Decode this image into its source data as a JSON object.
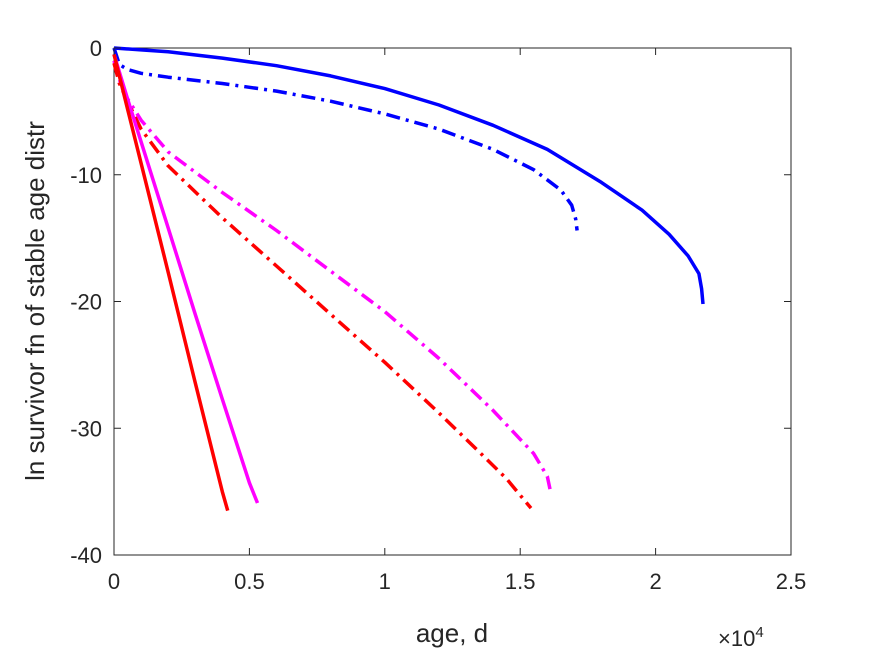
{
  "chart_data": {
    "type": "line",
    "title": "",
    "xlabel": "age, d",
    "ylabel": "ln survivor fn of stable age distr",
    "x_exponent_label": {
      "base": "×10",
      "power": "4"
    },
    "xlim": [
      0,
      25000
    ],
    "ylim": [
      -40,
      0
    ],
    "x_ticks": [
      0,
      5000,
      10000,
      15000,
      20000,
      25000
    ],
    "x_tick_labels": [
      "0",
      "0.5",
      "1",
      "1.5",
      "2",
      "2.5"
    ],
    "y_ticks": [
      0,
      -10,
      -20,
      -30,
      -40
    ],
    "y_tick_labels": [
      "0",
      "-10",
      "-20",
      "-30",
      "-40"
    ],
    "grid": false,
    "series": [
      {
        "color": "#0000ff",
        "style": "solid",
        "x": [
          0,
          1000,
          2000,
          4000,
          6000,
          8000,
          10000,
          12000,
          14000,
          16000,
          18000,
          19500,
          20500,
          21200,
          21600,
          21700,
          21750
        ],
        "y": [
          0,
          -0.15,
          -0.3,
          -0.8,
          -1.4,
          -2.2,
          -3.2,
          -4.5,
          -6.1,
          -8.0,
          -10.6,
          -12.8,
          -14.7,
          -16.4,
          -17.8,
          -19.0,
          -20.2
        ]
      },
      {
        "color": "#0000ff",
        "style": "dashdot",
        "x": [
          0,
          200,
          500,
          1000,
          2000,
          4000,
          6000,
          8000,
          10000,
          12000,
          14000,
          15500,
          16500,
          16900,
          17050,
          17100
        ],
        "y": [
          0,
          -1.3,
          -1.7,
          -2.0,
          -2.3,
          -2.8,
          -3.4,
          -4.2,
          -5.2,
          -6.4,
          -8.0,
          -9.6,
          -11.2,
          -12.4,
          -13.5,
          -14.4
        ]
      },
      {
        "color": "#ff00ff",
        "style": "dashdot",
        "x": [
          0,
          200,
          500,
          1000,
          2000,
          4000,
          6000,
          8000,
          10000,
          12000,
          14000,
          15500,
          16000,
          16100
        ],
        "y": [
          -1.0,
          -2.5,
          -4.0,
          -5.7,
          -8.2,
          -11.4,
          -14.4,
          -17.6,
          -20.8,
          -24.5,
          -28.6,
          -32.0,
          -33.8,
          -34.8
        ]
      },
      {
        "color": "#ff0000",
        "style": "dashdot",
        "x": [
          0,
          200,
          500,
          1000,
          2000,
          4000,
          6000,
          8000,
          10000,
          12000,
          13500,
          14500,
          15200,
          15400
        ],
        "y": [
          -1.2,
          -2.8,
          -4.2,
          -6.4,
          -9.3,
          -13.4,
          -17.2,
          -21.0,
          -24.8,
          -28.8,
          -31.9,
          -34.0,
          -35.8,
          -36.3
        ]
      },
      {
        "color": "#ff00ff",
        "style": "solid",
        "x": [
          0,
          500,
          1000,
          2000,
          3000,
          4000,
          5000,
          5300
        ],
        "y": [
          -0.5,
          -4.0,
          -7.4,
          -14.2,
          -21.0,
          -27.7,
          -34.3,
          -35.9
        ]
      },
      {
        "color": "#ff0000",
        "style": "solid",
        "x": [
          0,
          500,
          1000,
          2000,
          3000,
          4000,
          4200
        ],
        "y": [
          -0.5,
          -4.8,
          -9.1,
          -17.7,
          -26.4,
          -35.0,
          -36.5
        ]
      }
    ]
  }
}
